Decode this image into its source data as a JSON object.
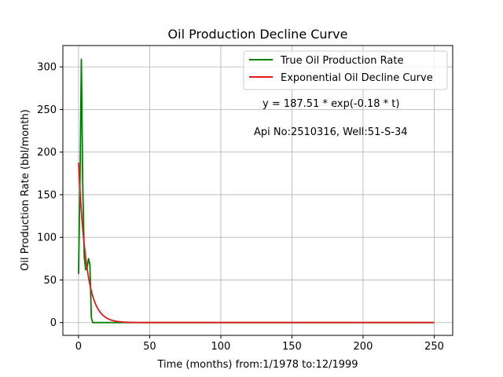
{
  "chart_data": {
    "type": "line",
    "title": "Oil Production Decline Curve",
    "xlabel": "Time (months) from:1/1978 to:12/1999",
    "ylabel": "Oil Production Rate (bbl/month)",
    "xlim": [
      -11,
      263
    ],
    "ylim": [
      -15,
      325
    ],
    "xticks": [
      0,
      50,
      100,
      150,
      200,
      250
    ],
    "yticks": [
      0,
      50,
      100,
      150,
      200,
      250,
      300
    ],
    "grid": true,
    "legend_position": "upper right",
    "annotations": [
      "y = 187.51 * exp(-0.18 * t)",
      "Api No:2510316, Well:51-S-34"
    ],
    "series": [
      {
        "name": "True Oil Production Rate",
        "color": "#008000",
        "x": [
          0,
          1,
          2,
          3,
          4,
          5,
          6,
          7,
          8,
          9,
          10,
          12,
          15,
          20,
          30,
          50,
          100,
          150,
          200,
          250
        ],
        "y": [
          57,
          160,
          309,
          160,
          77,
          62,
          64,
          75,
          68,
          6,
          0,
          0,
          0,
          0,
          0,
          0,
          0,
          0,
          0,
          0
        ]
      },
      {
        "name": "Exponential Oil Decline Curve",
        "color": "#e41a1c",
        "model": {
          "a": 187.51,
          "b": 0.18
        },
        "x_range": [
          0,
          250
        ]
      }
    ]
  }
}
